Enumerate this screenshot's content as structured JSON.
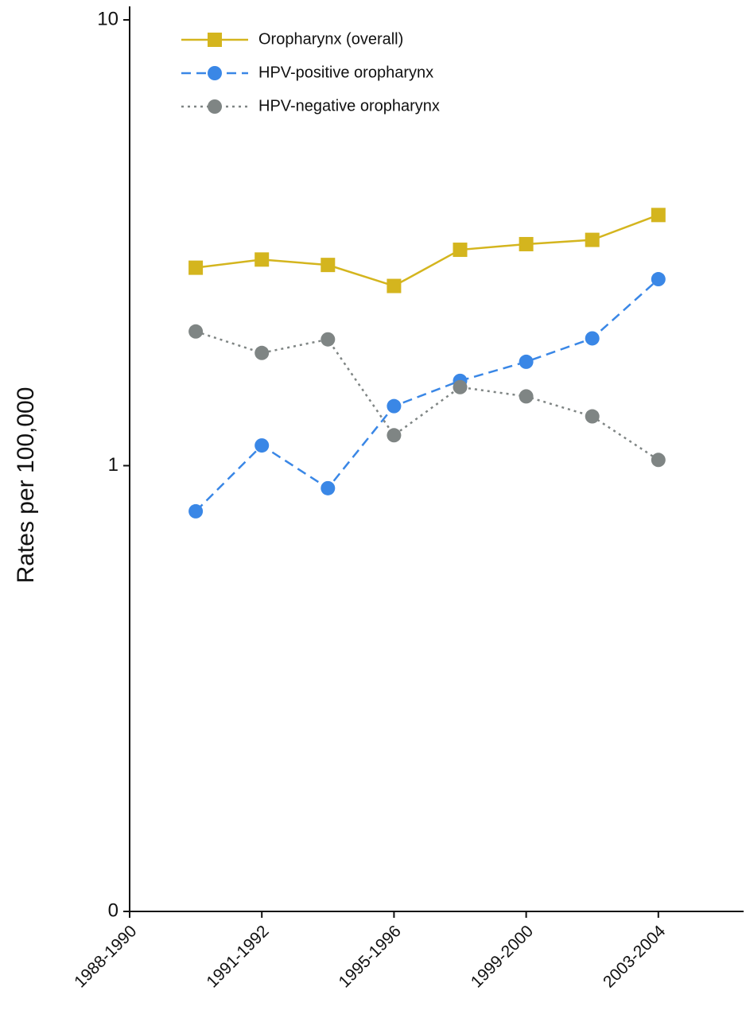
{
  "chart_data": {
    "type": "line",
    "y_label": "Rates per 100,000",
    "categories": [
      "1988-1990",
      null,
      "1991-1992",
      null,
      "1995-1996",
      null,
      "1999-2000",
      null,
      "2003-2004",
      null
    ],
    "log_scale_y": true,
    "ylim": [
      0.1,
      10
    ],
    "yticks": [
      {
        "value": 0.1,
        "label": "0"
      },
      1,
      10
    ],
    "legend": "top-left",
    "series": [
      {
        "name": "Oropharynx (overall)",
        "color": "#d4b51e",
        "dash": "solid",
        "marker": "square",
        "values": [
          null,
          2.78,
          2.9,
          2.82,
          2.53,
          3.05,
          3.14,
          3.21,
          3.65,
          null
        ]
      },
      {
        "name": "HPV-positive oropharynx",
        "color": "#3a87e6",
        "dash": "dashed",
        "marker": "circle",
        "values": [
          null,
          0.79,
          1.11,
          0.89,
          1.36,
          1.55,
          1.71,
          1.93,
          2.62,
          null
        ]
      },
      {
        "name": "HPV-negative oropharynx",
        "color": "#7f8584",
        "dash": "dotted",
        "marker": "circle",
        "values": [
          null,
          2.0,
          1.79,
          1.92,
          1.17,
          1.5,
          1.43,
          1.29,
          1.03,
          null
        ]
      }
    ]
  }
}
